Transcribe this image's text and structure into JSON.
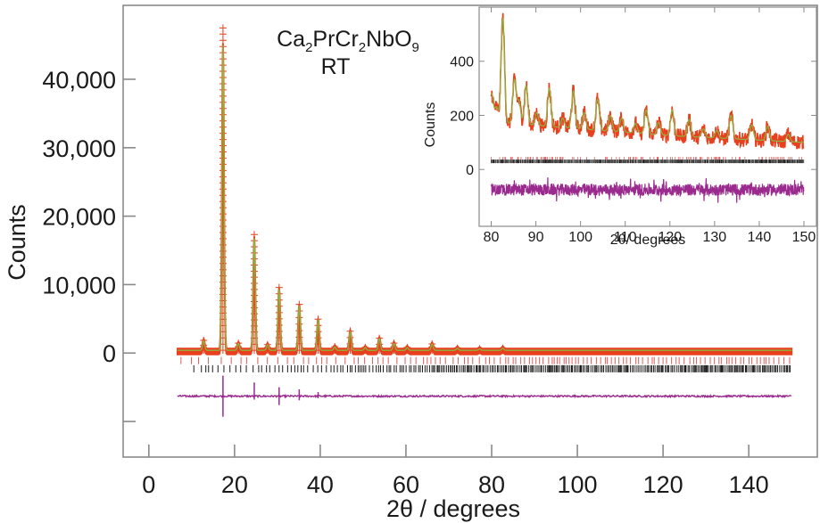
{
  "chart_data": [
    {
      "name": "main",
      "type": "line",
      "title": "Ca2PrCr2NbO9",
      "title_parts": [
        {
          "t": "Ca",
          "sub": false
        },
        {
          "t": "2",
          "sub": true
        },
        {
          "t": "PrCr",
          "sub": false
        },
        {
          "t": "2",
          "sub": true
        },
        {
          "t": "NbO",
          "sub": false
        },
        {
          "t": "9",
          "sub": true
        }
      ],
      "subtitle": "RT",
      "xlabel": "2θ / degrees",
      "ylabel": "Counts",
      "xlim": [
        -6,
        156
      ],
      "ylim": [
        -15200,
        50800
      ],
      "xticks": [
        0,
        20,
        40,
        60,
        80,
        100,
        120,
        140
      ],
      "xtick_labels": [
        "0",
        "20",
        "40",
        "60",
        "80",
        "100",
        "120",
        "140"
      ],
      "yticks": [
        -10000,
        0,
        10000,
        20000,
        30000,
        40000
      ],
      "ytick_labels": [
        "",
        "0",
        "10,000",
        "20,000",
        "30,000",
        "40,000"
      ],
      "grid": false,
      "x_range_data": [
        6.7,
        150
      ],
      "background_counts": 400,
      "peaks": [
        {
          "x": 12.8,
          "counts": 1800
        },
        {
          "x": 17.3,
          "counts": 45000,
          "obs_max": 47500
        },
        {
          "x": 20.9,
          "counts": 1400
        },
        {
          "x": 24.6,
          "counts": 16800
        },
        {
          "x": 27.7,
          "counts": 1200
        },
        {
          "x": 30.4,
          "counts": 9300
        },
        {
          "x": 35.1,
          "counts": 6900
        },
        {
          "x": 39.5,
          "counts": 4800
        },
        {
          "x": 43.4,
          "counts": 900
        },
        {
          "x": 47.0,
          "counts": 3100
        },
        {
          "x": 50.5,
          "counts": 800
        },
        {
          "x": 53.8,
          "counts": 2100
        },
        {
          "x": 57.2,
          "counts": 1400
        },
        {
          "x": 60.3,
          "counts": 800
        },
        {
          "x": 66.1,
          "counts": 1300
        },
        {
          "x": 72.0,
          "counts": 700
        },
        {
          "x": 77.2,
          "counts": 600
        },
        {
          "x": 82.6,
          "counts": 700
        }
      ],
      "difference_offset": -6300,
      "difference_spikes": [
        {
          "x": 17.3,
          "up": 3000,
          "down": -3000
        },
        {
          "x": 24.6,
          "up": 2000,
          "down": -500
        },
        {
          "x": 30.4,
          "up": 1300,
          "down": -1300
        },
        {
          "x": 35.1,
          "up": 1000,
          "down": -600
        },
        {
          "x": 39.5,
          "up": 600,
          "down": -300
        }
      ],
      "reflection_tick_rows": [
        {
          "phase": "phase-1",
          "color": "#e05a5a",
          "y_offset": -1100,
          "start": 7.5
        },
        {
          "phase": "phase-2",
          "color": "#1a1a1a",
          "y_offset": -2300,
          "start": 10.5
        }
      ],
      "series": [
        {
          "name": "observed",
          "marker": "+",
          "color": "#e8401e"
        },
        {
          "name": "calculated",
          "style": "line",
          "color": "#8db43c"
        },
        {
          "name": "difference",
          "style": "line",
          "color": "#9a2a8e"
        }
      ]
    },
    {
      "name": "inset",
      "type": "line",
      "xlabel": "2θ/ degrees",
      "ylabel": "Counts",
      "xlim": [
        77.3,
        152.8
      ],
      "ylim": [
        -210,
        600
      ],
      "xticks": [
        80,
        90,
        100,
        110,
        120,
        130,
        140,
        150
      ],
      "xtick_labels": [
        "80",
        "90",
        "100",
        "110",
        "120",
        "130",
        "140",
        "150"
      ],
      "yticks": [
        0,
        200,
        400
      ],
      "ytick_labels": [
        "0",
        "200",
        "400"
      ],
      "x_range_data": [
        80,
        150
      ],
      "background": [
        [
          80,
          175
        ],
        [
          100,
          150
        ],
        [
          120,
          125
        ],
        [
          150,
          100
        ]
      ],
      "peaks": [
        {
          "x": 80.1,
          "counts": 280
        },
        {
          "x": 81.2,
          "counts": 230
        },
        {
          "x": 82.6,
          "counts": 560
        },
        {
          "x": 85.2,
          "counts": 330
        },
        {
          "x": 86.2,
          "counts": 250
        },
        {
          "x": 87.8,
          "counts": 310
        },
        {
          "x": 90.2,
          "counts": 210
        },
        {
          "x": 93.0,
          "counts": 300
        },
        {
          "x": 96.0,
          "counts": 190
        },
        {
          "x": 98.4,
          "counts": 290
        },
        {
          "x": 100.8,
          "counts": 210
        },
        {
          "x": 103.8,
          "counts": 260
        },
        {
          "x": 106.7,
          "counts": 200
        },
        {
          "x": 109.2,
          "counts": 190
        },
        {
          "x": 112.3,
          "counts": 170
        },
        {
          "x": 114.7,
          "counts": 220
        },
        {
          "x": 117.5,
          "counts": 175
        },
        {
          "x": 120.5,
          "counts": 220
        },
        {
          "x": 124.3,
          "counts": 185
        },
        {
          "x": 127.5,
          "counts": 150
        },
        {
          "x": 130.5,
          "counts": 145
        },
        {
          "x": 133.7,
          "counts": 200
        },
        {
          "x": 138.3,
          "counts": 165
        },
        {
          "x": 141.9,
          "counts": 160
        },
        {
          "x": 146.5,
          "counts": 130
        }
      ],
      "difference_offset": -75,
      "difference_noise": 22,
      "reflection_tick_y": 30
    }
  ]
}
